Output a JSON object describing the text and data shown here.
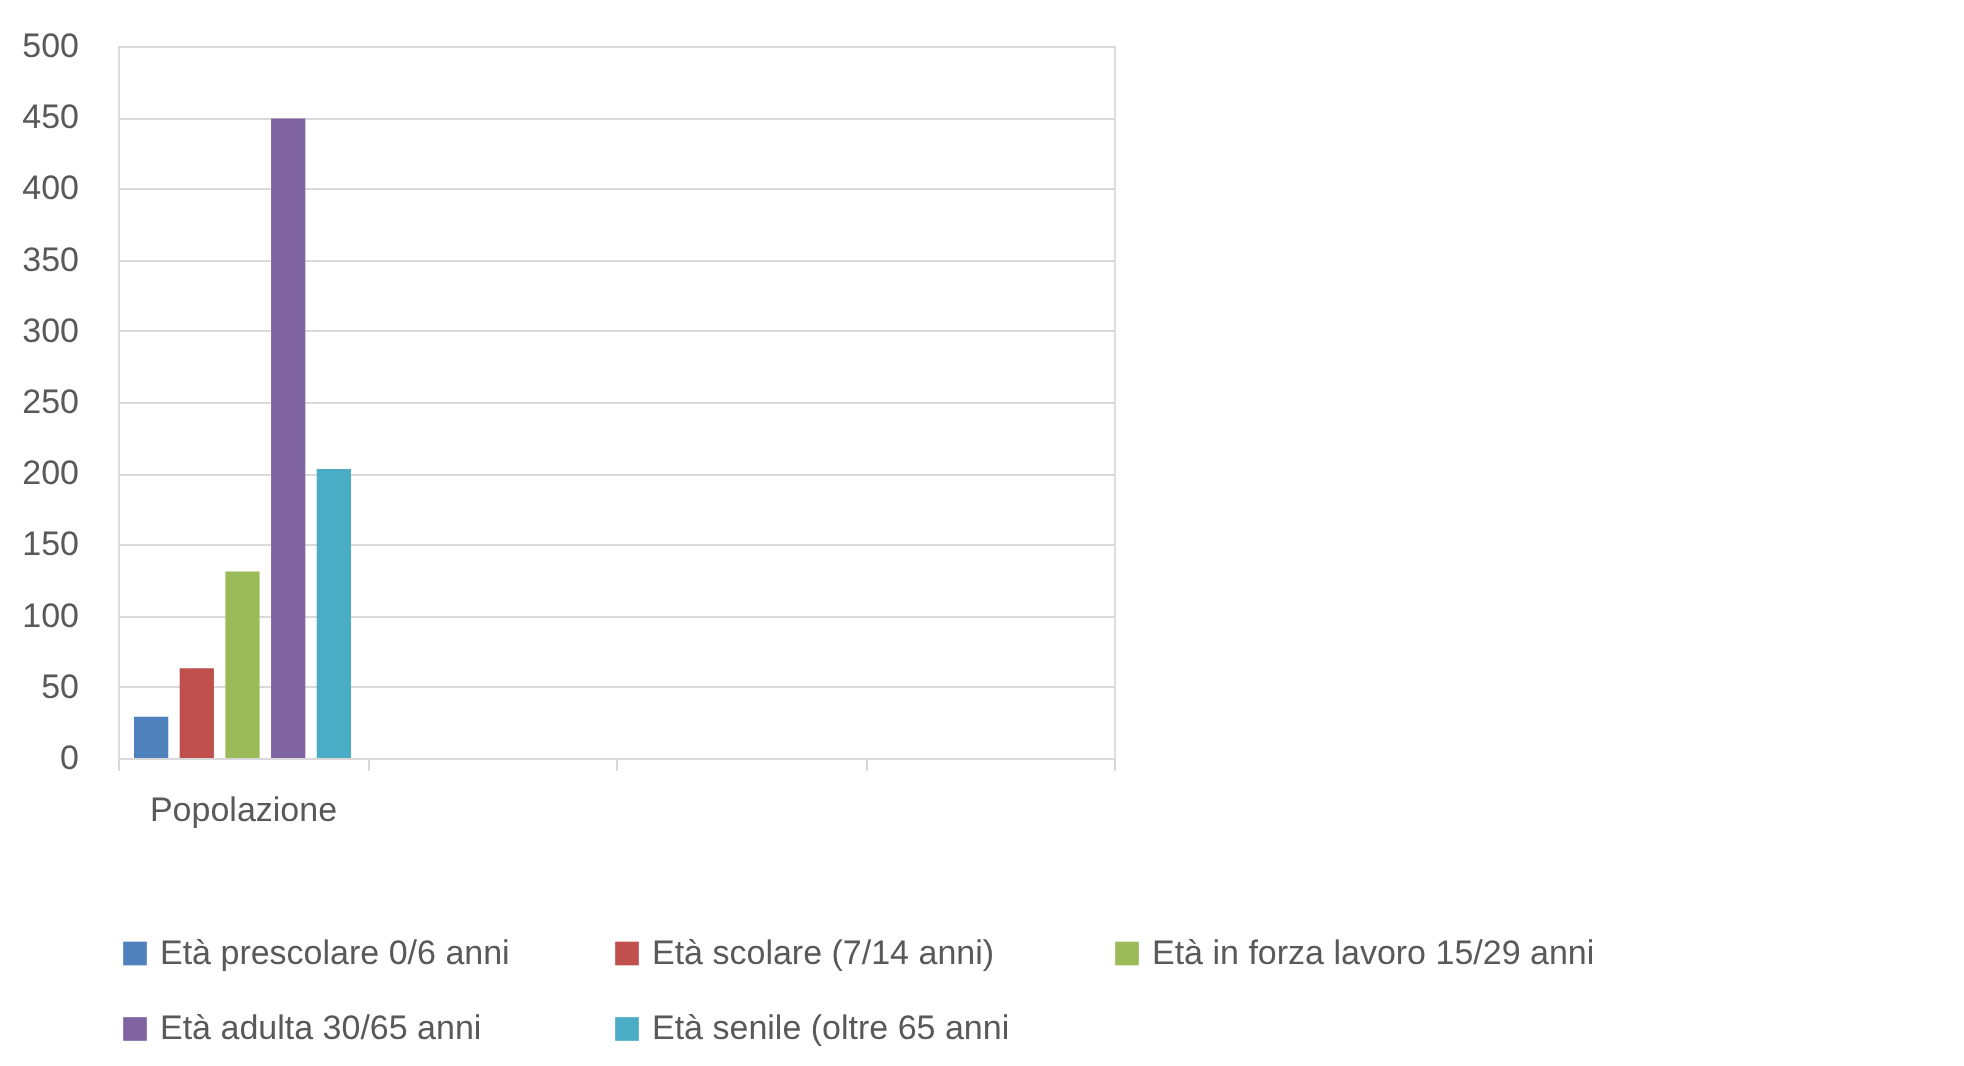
{
  "chart_data": {
    "type": "bar",
    "categories": [
      "Popolazione",
      null,
      null,
      null
    ],
    "series": [
      {
        "name": "Età prescolare 0/6 anni",
        "color": "#4f81bd",
        "values": [
          29,
          null,
          null,
          null
        ]
      },
      {
        "name": "Età scolare (7/14 anni)",
        "color": "#c0504d",
        "values": [
          63,
          null,
          null,
          null
        ]
      },
      {
        "name": "Età in forza lavoro 15/29 anni",
        "color": "#9bbb59",
        "values": [
          131,
          null,
          null,
          null
        ]
      },
      {
        "name": "Età adulta 30/65 anni",
        "color": "#8064a2",
        "values": [
          449,
          null,
          null,
          null
        ]
      },
      {
        "name": "Età senile (oltre 65 anni",
        "color": "#4bacc6",
        "values": [
          203,
          null,
          null,
          null
        ]
      }
    ],
    "ylim": [
      0,
      500
    ],
    "yticks": [
      0,
      50,
      100,
      150,
      200,
      250,
      300,
      350,
      400,
      450,
      500
    ],
    "grid": "y",
    "legend": "bottom"
  }
}
